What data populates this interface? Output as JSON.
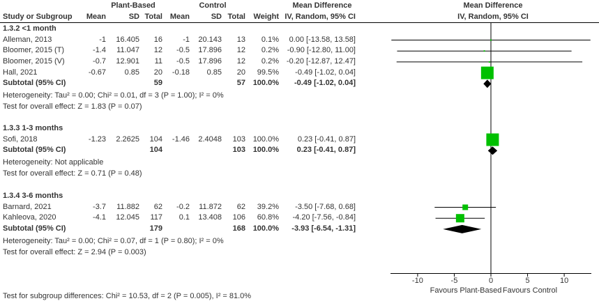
{
  "header": {
    "study_label": "Study or Subgroup",
    "plant_group": "Plant-Based",
    "control_group": "Control",
    "mean": "Mean",
    "sd": "SD",
    "total": "Total",
    "weight": "Weight",
    "md_title": "Mean Difference",
    "md_method": "IV, Random, 95% CI",
    "plot_title": "Mean Difference",
    "plot_method": "IV, Random, 95% CI"
  },
  "subgroups": [
    {
      "title": "1.3.2 <1 month",
      "studies": [
        {
          "name": "Alleman, 2013",
          "pm": "-1",
          "psd": "16.405",
          "pn": "16",
          "cm": "-1",
          "csd": "20.143",
          "cn": "13",
          "weight": "0.1%",
          "ci": "0.00 [-13.58, 13.58]",
          "md": 0.0,
          "lo": -13.58,
          "hi": 13.58
        },
        {
          "name": "Bloomer, 2015 (T)",
          "pm": "-1.4",
          "psd": "11.047",
          "pn": "12",
          "cm": "-0.5",
          "csd": "17.896",
          "cn": "12",
          "weight": "0.2%",
          "ci": "-0.90 [-12.80, 11.00]",
          "md": -0.9,
          "lo": -12.8,
          "hi": 11.0
        },
        {
          "name": "Bloomer, 2015 (V)",
          "pm": "-0.7",
          "psd": "12.901",
          "pn": "11",
          "cm": "-0.5",
          "csd": "17.896",
          "cn": "12",
          "weight": "0.2%",
          "ci": "-0.20 [-12.87, 12.47]",
          "md": -0.2,
          "lo": -12.87,
          "hi": 12.47
        },
        {
          "name": "Hall, 2021",
          "pm": "-0.67",
          "psd": "0.85",
          "pn": "20",
          "cm": "-0.18",
          "csd": "0.85",
          "cn": "20",
          "weight": "99.5%",
          "ci": "-0.49 [-1.02, 0.04]",
          "md": -0.49,
          "lo": -1.02,
          "hi": 0.04
        }
      ],
      "subtotal": {
        "label": "Subtotal (95% CI)",
        "pn": "59",
        "cn": "57",
        "weight": "100.0%",
        "ci": "-0.49 [-1.02, 0.04]",
        "md": -0.49,
        "lo": -1.02,
        "hi": 0.04
      },
      "heterogeneity": "Heterogeneity: Tau² = 0.00; Chi² = 0.01, df = 3 (P = 1.00); I² = 0%",
      "overall": "Test for overall effect: Z = 1.83 (P = 0.07)"
    },
    {
      "title": "1.3.3 1-3 months",
      "studies": [
        {
          "name": "Sofi, 2018",
          "pm": "-1.23",
          "psd": "2.2625",
          "pn": "104",
          "cm": "-1.46",
          "csd": "2.4048",
          "cn": "103",
          "weight": "100.0%",
          "ci": "0.23 [-0.41, 0.87]",
          "md": 0.23,
          "lo": -0.41,
          "hi": 0.87
        }
      ],
      "subtotal": {
        "label": "Subtotal (95% CI)",
        "pn": "104",
        "cn": "103",
        "weight": "100.0%",
        "ci": "0.23 [-0.41, 0.87]",
        "md": 0.23,
        "lo": -0.41,
        "hi": 0.87
      },
      "heterogeneity": "Heterogeneity: Not applicable",
      "overall": "Test for overall effect: Z = 0.71 (P = 0.48)"
    },
    {
      "title": "1.3.4 3-6 months",
      "studies": [
        {
          "name": "Barnard, 2021",
          "pm": "-3.7",
          "psd": "11.882",
          "pn": "62",
          "cm": "-0.2",
          "csd": "11.872",
          "cn": "62",
          "weight": "39.2%",
          "ci": "-3.50 [-7.68, 0.68]",
          "md": -3.5,
          "lo": -7.68,
          "hi": 0.68
        },
        {
          "name": "Kahleova, 2020",
          "pm": "-4.1",
          "psd": "12.045",
          "pn": "117",
          "cm": "0.1",
          "csd": "13.408",
          "cn": "106",
          "weight": "60.8%",
          "ci": "-4.20 [-7.56, -0.84]",
          "md": -4.2,
          "lo": -7.56,
          "hi": -0.84
        }
      ],
      "subtotal": {
        "label": "Subtotal (95% CI)",
        "pn": "179",
        "cn": "168",
        "weight": "100.0%",
        "ci": "-3.93 [-6.54, -1.31]",
        "md": -3.93,
        "lo": -6.54,
        "hi": -1.31
      },
      "heterogeneity": "Heterogeneity: Tau² = 0.00; Chi² = 0.07, df = 1 (P = 0.80); I² = 0%",
      "overall": "Test for overall effect: Z = 2.94 (P = 0.003)"
    }
  ],
  "subgroup_test": "Test for subgroup differences: Chi² = 10.53, df = 2 (P = 0.005), I² = 81.0%",
  "chart_data": {
    "type": "forest",
    "xlim": [
      -13.7,
      13.7
    ],
    "xticks": [
      "-10",
      "-5",
      "0",
      "5",
      "10"
    ],
    "xlabel_left": "Favours Plant-Based",
    "xlabel_right": "Favours Control",
    "colors": {
      "study_marker": "#00c000",
      "summary_diamond": "#000000"
    }
  }
}
